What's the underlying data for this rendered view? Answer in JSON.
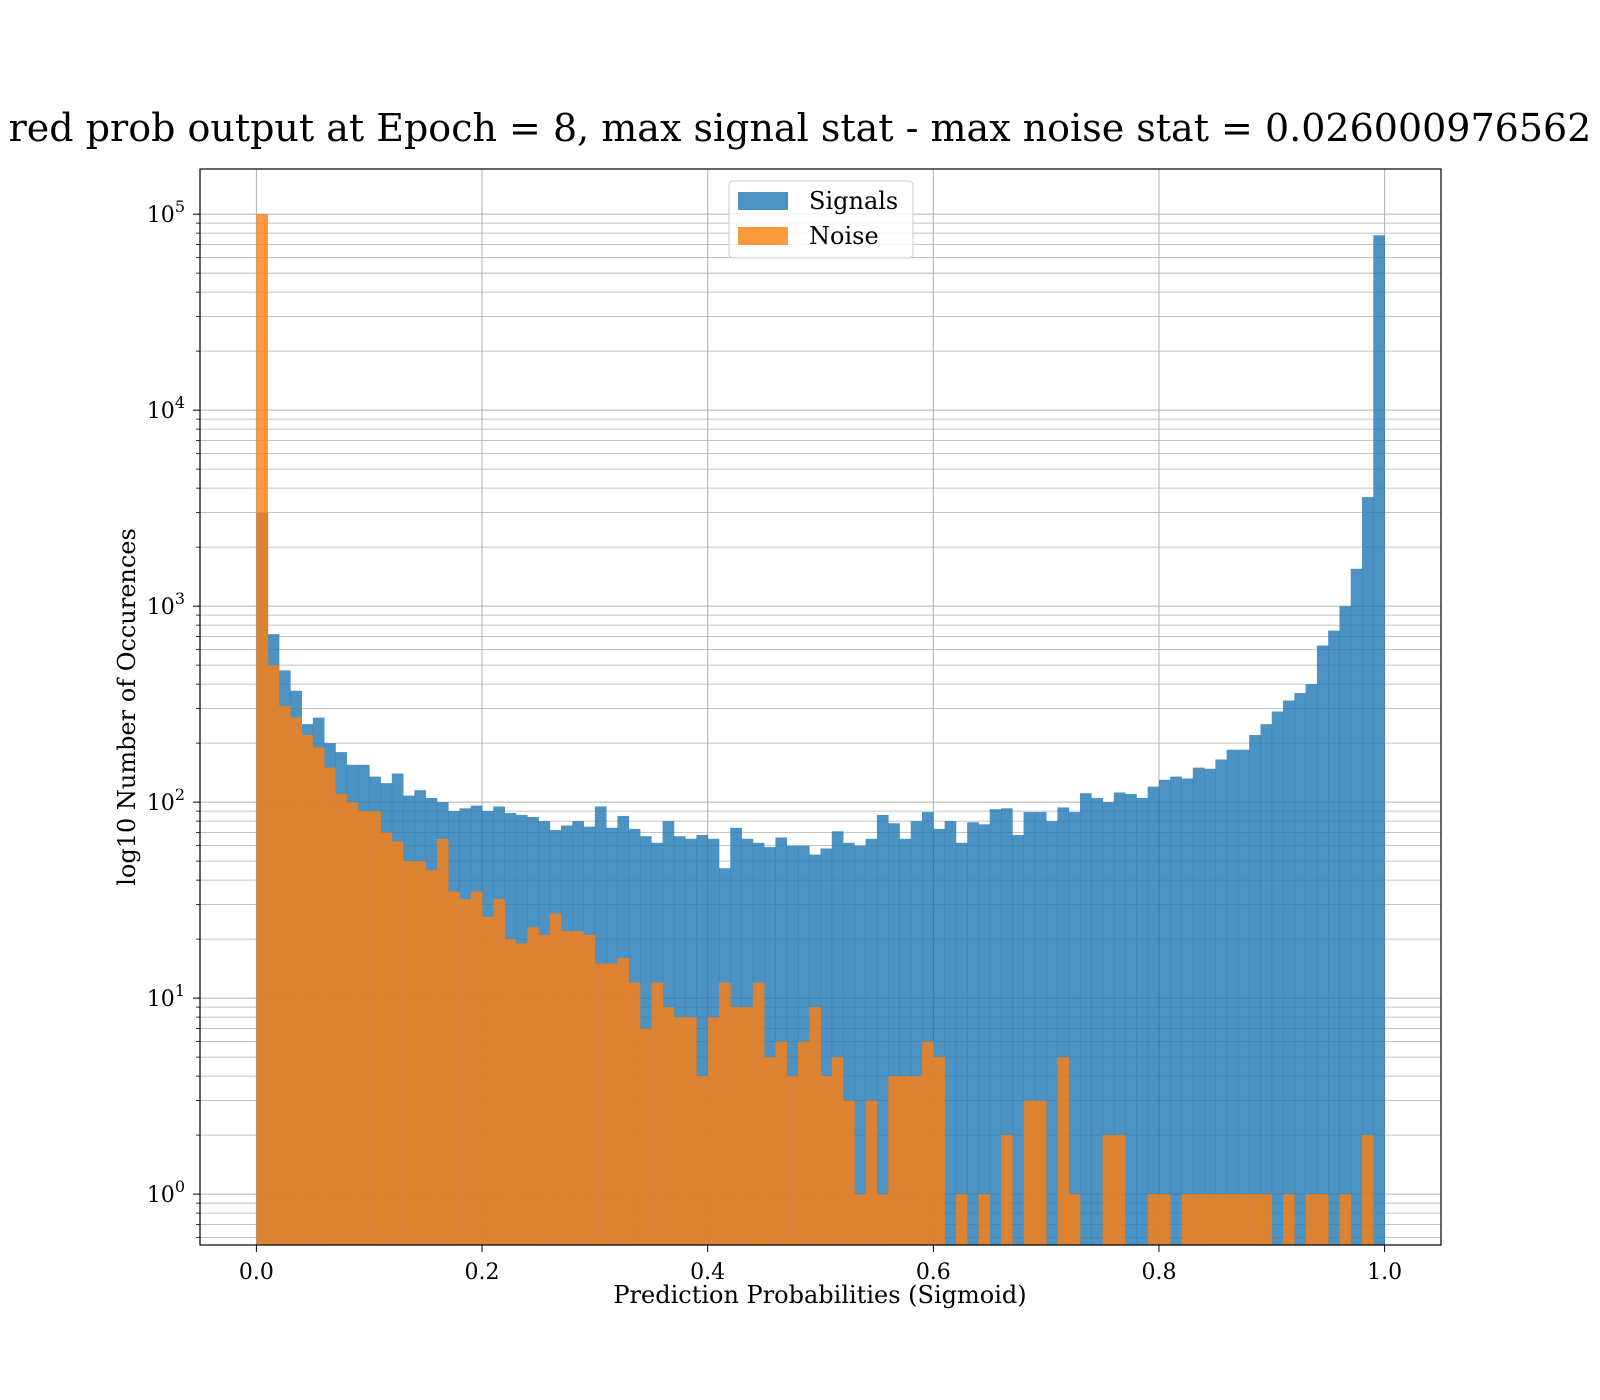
{
  "chart_data": {
    "type": "bar",
    "title": "red prob output at Epoch = 8, max signal stat - max noise stat = 0.026000976562",
    "xlabel": "Prediction Probabilities (Sigmoid)",
    "ylabel": "log10 Number of Occurences",
    "x_scale": "linear",
    "y_scale": "log",
    "xlim": [
      -0.05,
      1.05
    ],
    "ylim": [
      0.55,
      170000
    ],
    "x_ticks": [
      {
        "value": 0.0,
        "label": "0.0"
      },
      {
        "value": 0.2,
        "label": "0.2"
      },
      {
        "value": 0.4,
        "label": "0.4"
      },
      {
        "value": 0.6,
        "label": "0.6"
      },
      {
        "value": 0.8,
        "label": "0.8"
      },
      {
        "value": 1.0,
        "label": "1.0"
      }
    ],
    "y_ticks": [
      {
        "value": 1,
        "base": "10",
        "exp": "0"
      },
      {
        "value": 10,
        "base": "10",
        "exp": "1"
      },
      {
        "value": 100,
        "base": "10",
        "exp": "2"
      },
      {
        "value": 1000,
        "base": "10",
        "exp": "3"
      },
      {
        "value": 10000,
        "base": "10",
        "exp": "4"
      },
      {
        "value": 100000,
        "base": "10",
        "exp": "5"
      }
    ],
    "grid": "both, major and minor",
    "legend_position": "top-center",
    "bins": {
      "start": 0.0,
      "end": 1.0,
      "count": 100
    },
    "series": [
      {
        "name": "Signals",
        "color": "#1f77b4",
        "opacity": 0.8,
        "values": [
          3000,
          720,
          470,
          370,
          250,
          270,
          200,
          180,
          155,
          155,
          135,
          125,
          140,
          108,
          115,
          105,
          100,
          90,
          93,
          96,
          90,
          95,
          88,
          86,
          84,
          80,
          72,
          76,
          80,
          75,
          95,
          74,
          85,
          73,
          67,
          62,
          80,
          67,
          65,
          68,
          65,
          46,
          74,
          65,
          62,
          59,
          66,
          60,
          60,
          54,
          58,
          71,
          62,
          60,
          65,
          86,
          78,
          65,
          80,
          89,
          73,
          80,
          62,
          79,
          77,
          92,
          93,
          68,
          89,
          89,
          80,
          94,
          89,
          111,
          105,
          100,
          112,
          110,
          105,
          120,
          130,
          135,
          132,
          150,
          148,
          165,
          185,
          185,
          220,
          250,
          290,
          330,
          360,
          400,
          630,
          750,
          1000,
          1550,
          3600,
          78000
        ]
      },
      {
        "name": "Noise",
        "color": "#ff7f0e",
        "opacity": 0.8,
        "values": [
          100000,
          500,
          310,
          270,
          220,
          190,
          150,
          110,
          100,
          90,
          90,
          70,
          63,
          50,
          50,
          45,
          65,
          35,
          32,
          35,
          26,
          32,
          20,
          19,
          23,
          21,
          27,
          22,
          22,
          21,
          15,
          15,
          16,
          12,
          7,
          12,
          9,
          8,
          8,
          4,
          8,
          12,
          9,
          9,
          12,
          5,
          6,
          4,
          6,
          9,
          4,
          5,
          3,
          1,
          3,
          1,
          4,
          4,
          4,
          6,
          5,
          0,
          1,
          0,
          1,
          0,
          2,
          0,
          3,
          3,
          0,
          5,
          1,
          0,
          0,
          2,
          2,
          0,
          0,
          1,
          1,
          0,
          1,
          1,
          1,
          1,
          1,
          1,
          1,
          1,
          0,
          1,
          0,
          1,
          1,
          0,
          1,
          0,
          2,
          0
        ]
      }
    ]
  }
}
